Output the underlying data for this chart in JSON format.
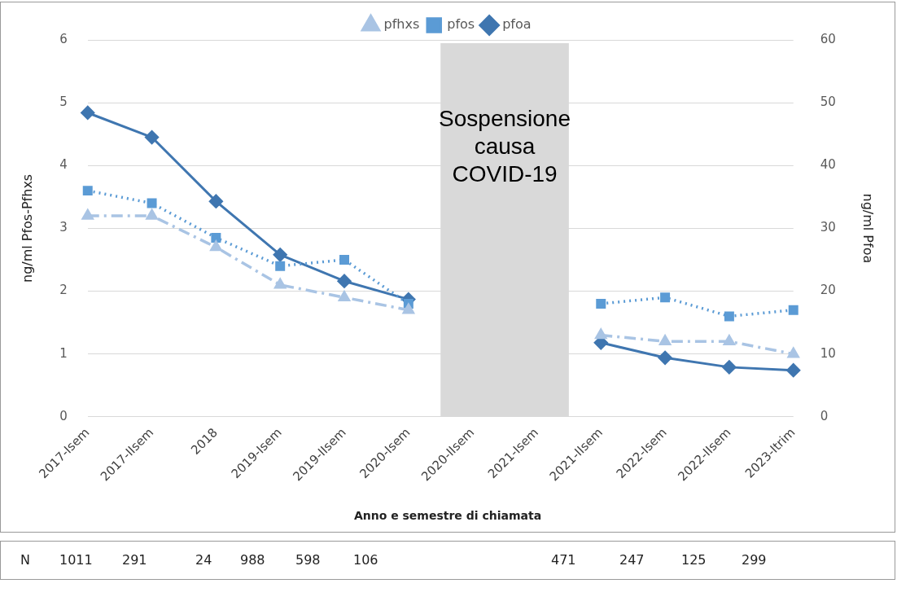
{
  "chart_data": {
    "type": "line",
    "xlabel": "Anno e semestre di chiamata",
    "ylabel": "ng/ml Pfos-Pfhxs",
    "y2label": "ng/ml Pfoa",
    "categories": [
      "2017-Isem",
      "2017-IIsem",
      "2018",
      "2019-Isem",
      "2019-IIsem",
      "2020-Isem",
      "2020-IIsem",
      "2021-Isem",
      "2021-IIsem",
      "2022-Isem",
      "2022-IIsem",
      "2023-Itrim"
    ],
    "series": [
      {
        "name": "pfos",
        "color": "#5b9bd5",
        "marker": "square",
        "line_style": "dotted",
        "values": [
          3.6,
          3.4,
          2.85,
          2.4,
          2.5,
          1.8,
          null,
          null,
          1.8,
          1.9,
          1.6,
          1.7
        ]
      },
      {
        "name": "pfhxs",
        "color": "#a9c4e4",
        "marker": "triangle",
        "line_style": "dashed",
        "values": [
          3.2,
          3.2,
          2.7,
          2.1,
          1.9,
          1.7,
          null,
          null,
          1.3,
          1.2,
          1.2,
          1.0
        ]
      },
      {
        "name": "pfoa",
        "color": "#3f76b0",
        "marker": "diamond",
        "line_style": "solid",
        "axis": "y2",
        "values": [
          48.4,
          44.5,
          34.3,
          25.8,
          21.6,
          18.7,
          null,
          null,
          11.8,
          9.4,
          7.9,
          7.4
        ]
      }
    ],
    "ylim": [
      0,
      6
    ],
    "yticks": [
      0,
      1,
      2,
      3,
      4,
      5,
      6
    ],
    "y2lim": [
      0,
      60
    ],
    "y2ticks": [
      0,
      10,
      20,
      30,
      40,
      50,
      60
    ],
    "grid": "y",
    "legend": "top",
    "bands": [
      {
        "axis": "x",
        "from": "2020-IIsem",
        "to": "2021-Isem",
        "label": "Sospensione causa COVID-19",
        "color": "#d9d9d9"
      }
    ],
    "annotations": [
      "N",
      "1011",
      "291",
      "24",
      "988",
      "598",
      "106",
      "471",
      "247",
      "125",
      "299"
    ]
  }
}
